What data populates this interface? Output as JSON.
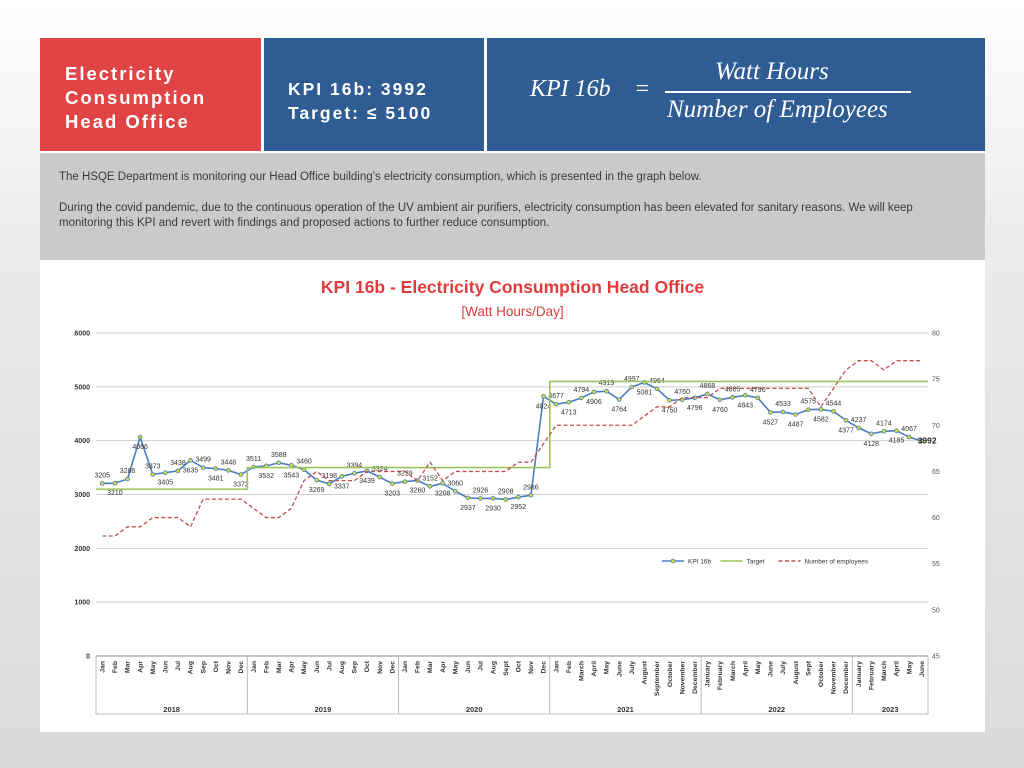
{
  "header": {
    "title": "Electricity Consumption Head Office",
    "kpi_line": "KPI 16b: 3992",
    "target_line": "Target: ≤ 5100",
    "formula_lhs": "KPI 16b",
    "formula_eq": "=",
    "formula_numerator": "Watt Hours",
    "formula_denominator": "Number of Employees",
    "status_icon": "battery-icon",
    "status_color": "#27b536"
  },
  "description": {
    "p1": "The HSQE Department is monitoring our Head Office building’s electricity consumption, which is presented in the graph below.",
    "p2": "During the covid pandemic, due to the continuous operation of the UV ambient air purifiers, electricity consumption has been elevated for sanitary reasons. We will keep monitoring this KPI and revert with findings and proposed actions to further reduce consumption."
  },
  "chart_data": {
    "type": "line",
    "title": "KPI 16b - Electricity Consumption Head Office",
    "subtitle": "[Watt Hours/Day]",
    "categories": [
      "Jan",
      "Feb",
      "Mar",
      "Apr",
      "May",
      "Jun",
      "Jul",
      "Aug",
      "Sep",
      "Oct",
      "Nov",
      "Dec",
      "Jan",
      "Feb",
      "Mar",
      "Apr",
      "May",
      "Jun",
      "Jul",
      "Aug",
      "Sep",
      "Oct",
      "Nov",
      "Dec",
      "Jan",
      "Feb",
      "Mar",
      "Apr",
      "May",
      "Jun",
      "Jul",
      "Aug",
      "Sept",
      "Oct",
      "Nov",
      "Dec",
      "Jan",
      "Feb",
      "March",
      "April",
      "May",
      "June",
      "July",
      "August",
      "September",
      "October",
      "November",
      "December",
      "January",
      "February",
      "March",
      "April",
      "May",
      "June",
      "July",
      "August",
      "Sept",
      "October",
      "November",
      "December",
      "January",
      "February",
      "March",
      "April",
      "May",
      "June"
    ],
    "year_groups": [
      {
        "label": "2018",
        "count": 12
      },
      {
        "label": "2019",
        "count": 12
      },
      {
        "label": "2020",
        "count": 12
      },
      {
        "label": "2021",
        "count": 12
      },
      {
        "label": "2022",
        "count": 12
      },
      {
        "label": "2023",
        "count": 6
      }
    ],
    "ylim": [
      0,
      6000
    ],
    "yticks": [
      0,
      1000,
      2000,
      3000,
      4000,
      5000,
      6000
    ],
    "y2lim": [
      45,
      80
    ],
    "y2ticks": [
      45,
      50,
      55,
      60,
      65,
      70,
      75,
      80
    ],
    "last_value_label": "3992",
    "legend_position": "right",
    "grid": true,
    "series": [
      {
        "name": "KPI 16b",
        "color": "#4a7ec0",
        "marker": true,
        "axis": "left",
        "labels": true,
        "values": [
          3205,
          3210,
          3286,
          4066,
          3373,
          3405,
          3438,
          3635,
          3499,
          3481,
          3448,
          3372,
          3511,
          3532,
          3588,
          3543,
          3460,
          3269,
          3198,
          3337,
          3394,
          3439,
          3324,
          3203,
          3239,
          3260,
          3152,
          3208,
          3060,
          2937,
          2926,
          2930,
          2908,
          2952,
          2986,
          4824,
          4677,
          4713,
          4794,
          4906,
          4919,
          4764,
          4997,
          5081,
          4964,
          4750,
          4760,
          4796,
          4868,
          4760,
          4805,
          4843,
          4796,
          4527,
          4533,
          4487,
          4575,
          4582,
          4544,
          4377,
          4237,
          4128,
          4174,
          4185,
          4067,
          3992
        ]
      },
      {
        "name": "Target",
        "color": "#9cc35c",
        "marker": false,
        "axis": "left",
        "labels": false,
        "values": [
          3100,
          3100,
          3100,
          3100,
          3100,
          3100,
          3100,
          3100,
          3100,
          3100,
          3100,
          3100,
          3500,
          3500,
          3500,
          3500,
          3500,
          3500,
          3500,
          3500,
          3500,
          3500,
          3500,
          3500,
          3500,
          3500,
          3500,
          3500,
          3500,
          3500,
          3500,
          3500,
          3500,
          3500,
          3500,
          3500,
          5100,
          5100,
          5100,
          5100,
          5100,
          5100,
          5100,
          5100,
          5100,
          5100,
          5100,
          5100,
          5100,
          5100,
          5100,
          5100,
          5100,
          5100,
          5100,
          5100,
          5100,
          5100,
          5100,
          5100,
          5100,
          5100,
          5100,
          5100,
          5100,
          5100
        ]
      },
      {
        "name": "Number of employees",
        "color": "#c0504d",
        "marker": false,
        "axis": "right",
        "dashed": true,
        "labels": false,
        "values": [
          58,
          58,
          59,
          59,
          60,
          60,
          60,
          59,
          62,
          62,
          62,
          62,
          61,
          60,
          60,
          61,
          64,
          65,
          64,
          64,
          64,
          65,
          65,
          65,
          65,
          64,
          66,
          64,
          65,
          65,
          65,
          65,
          65,
          66,
          66,
          68,
          70,
          70,
          70,
          70,
          70,
          70,
          70,
          71,
          72,
          72,
          73,
          73,
          73,
          74,
          74,
          74,
          74,
          74,
          74,
          74,
          74,
          72,
          74,
          76,
          77,
          77,
          76,
          77,
          77,
          77
        ]
      }
    ]
  }
}
